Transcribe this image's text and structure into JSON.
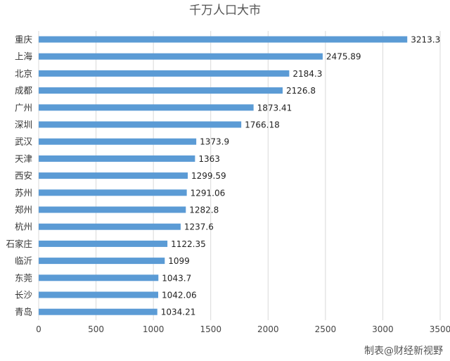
{
  "chart_data": {
    "type": "bar",
    "orientation": "horizontal",
    "title": "千万人口大市",
    "categories": [
      "重庆",
      "上海",
      "北京",
      "成都",
      "广州",
      "深圳",
      "武汉",
      "天津",
      "西安",
      "苏州",
      "郑州",
      "杭州",
      "石家庄",
      "临沂",
      "东莞",
      "长沙",
      "青岛"
    ],
    "values": [
      3213.3,
      2475.89,
      2184.3,
      2126.8,
      1873.41,
      1766.18,
      1373.9,
      1363,
      1299.59,
      1291.06,
      1282.8,
      1237.6,
      1122.35,
      1099,
      1043.7,
      1042.06,
      1034.21
    ],
    "value_labels": [
      "3213.3",
      "2475.89",
      "2184.3",
      "2126.8",
      "1873.41",
      "1766.18",
      "1373.9",
      "1363",
      "1299.59",
      "1291.06",
      "1282.8",
      "1237.6",
      "1122.35",
      "1099",
      "1043.7",
      "1042.06",
      "1034.21"
    ],
    "xlim": [
      0,
      3500
    ],
    "x_ticks": [
      "0",
      "500",
      "1000",
      "1500",
      "2000",
      "2500",
      "3000",
      "3500"
    ],
    "grid": "vertical",
    "bar_color": "#5b9bd5",
    "grid_color": "#d9d9d9"
  },
  "footer": {
    "credit": "制表@财经新视野"
  }
}
